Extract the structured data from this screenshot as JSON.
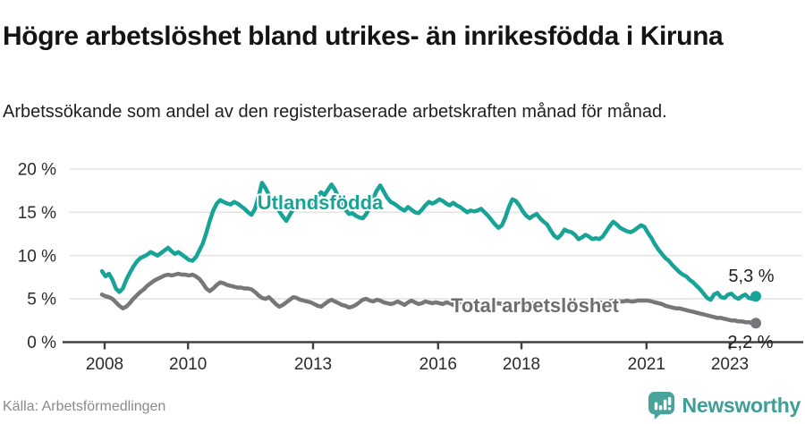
{
  "header": {
    "title": "Högre arbetslöshet bland utrikes- än inrikesfödda i Kiruna",
    "subtitle": "Arbetssökande som andel av den registerbaserade arbetskraften månad för månad."
  },
  "footer": {
    "source": "Källa: Arbetsförmedlingen",
    "brand": "Newsworthy",
    "brand_icon": "newsworthy-bar-chart-speech-bubble"
  },
  "colors": {
    "foreign_born_line": "#18a397",
    "total_line": "#76767b",
    "total_label": "#6d6d72",
    "grid": "#e3e3e3",
    "axis": "#404040",
    "tick_text": "#2b2b2b",
    "brand_teal": "#3f9e96"
  },
  "chart_data": {
    "type": "line",
    "title": "Högre arbetslöshet bland utrikes- än inrikesfödda i Kiruna",
    "subtitle": "Arbetssökande som andel av den registerbaserade arbetskraften månad för månad.",
    "unit": "%",
    "x_interval": "monthly",
    "x_start": "2008-01",
    "x_end": "2023-09",
    "xlabel": "",
    "ylabel": "",
    "ylim": [
      0,
      20
    ],
    "grid": "horizontal",
    "legend_position": "inline-labels",
    "y_tick_values": [
      20,
      15,
      10,
      5,
      0
    ],
    "y_tick_labels": [
      "20 %",
      "15 %",
      "10 %",
      "5 %",
      "0 %"
    ],
    "x_tick_years": [
      2008,
      2010,
      2013,
      2016,
      2018,
      2021,
      2023
    ],
    "x_tick_labels": [
      "2008",
      "2010",
      "2013",
      "2016",
      "2018",
      "2021",
      "2023"
    ],
    "series": [
      {
        "name": "Utlandsfödda",
        "color": "#18a397",
        "end_label": "5,3 %",
        "last_value": 5.3,
        "values": [
          8.2,
          7.6,
          7.9,
          7.2,
          6.2,
          5.8,
          6.2,
          7.2,
          8.0,
          8.7,
          9.3,
          9.7,
          9.9,
          10.1,
          10.4,
          10.2,
          10.0,
          10.3,
          10.6,
          10.9,
          10.5,
          10.2,
          10.4,
          10.1,
          9.8,
          9.5,
          9.4,
          9.8,
          10.6,
          11.4,
          12.6,
          14.0,
          15.2,
          16.0,
          16.4,
          16.2,
          16.0,
          15.9,
          16.2,
          16.0,
          15.7,
          15.4,
          15.0,
          14.7,
          15.4,
          16.8,
          18.4,
          17.8,
          17.0,
          16.3,
          15.8,
          15.1,
          14.5,
          14.0,
          14.7,
          15.4,
          15.9,
          16.2,
          15.9,
          15.6,
          15.9,
          16.3,
          16.9,
          17.3,
          17.0,
          17.6,
          18.2,
          17.6,
          16.7,
          15.9,
          15.3,
          14.8,
          14.9,
          14.6,
          14.4,
          14.3,
          14.8,
          15.6,
          16.6,
          17.5,
          18.1,
          17.4,
          16.7,
          16.2,
          16.0,
          15.7,
          15.4,
          15.2,
          15.6,
          15.3,
          15.0,
          14.9,
          15.3,
          15.8,
          16.2,
          16.0,
          16.2,
          16.5,
          16.3,
          16.0,
          15.8,
          16.1,
          15.8,
          15.6,
          15.3,
          15.0,
          15.2,
          15.1,
          15.2,
          15.4,
          15.0,
          14.6,
          14.1,
          13.6,
          13.2,
          13.5,
          14.4,
          15.6,
          16.5,
          16.3,
          15.8,
          15.1,
          14.6,
          14.3,
          14.6,
          14.8,
          14.3,
          13.9,
          13.6,
          12.9,
          12.3,
          12.0,
          12.4,
          13.0,
          12.8,
          12.7,
          12.4,
          11.9,
          12.1,
          12.4,
          12.2,
          11.9,
          12.0,
          11.9,
          12.2,
          12.8,
          13.4,
          13.9,
          13.6,
          13.2,
          13.0,
          12.8,
          12.7,
          12.9,
          13.2,
          13.5,
          13.3,
          12.6,
          12.0,
          11.3,
          10.7,
          10.2,
          9.7,
          9.4,
          8.9,
          8.5,
          8.1,
          7.8,
          7.6,
          7.2,
          6.9,
          6.5,
          6.1,
          5.6,
          5.1,
          4.9,
          5.5,
          5.7,
          5.2,
          5.1,
          5.5,
          5.6,
          5.2,
          5.0,
          5.3,
          5.5,
          5.1,
          5.0,
          5.3
        ]
      },
      {
        "name": "Total arbetslöshet",
        "color": "#76767b",
        "end_label": "2,2 %",
        "last_value": 2.2,
        "values": [
          5.5,
          5.3,
          5.2,
          5.0,
          4.6,
          4.2,
          3.9,
          4.1,
          4.5,
          5.0,
          5.4,
          5.8,
          6.1,
          6.5,
          6.8,
          7.1,
          7.3,
          7.5,
          7.7,
          7.8,
          7.7,
          7.8,
          7.9,
          7.8,
          7.8,
          7.7,
          7.8,
          7.6,
          7.3,
          6.8,
          6.2,
          5.9,
          6.2,
          6.6,
          6.9,
          6.8,
          6.6,
          6.5,
          6.4,
          6.3,
          6.3,
          6.2,
          6.2,
          6.1,
          5.8,
          5.4,
          5.1,
          5.0,
          5.2,
          4.8,
          4.4,
          4.1,
          4.3,
          4.6,
          4.9,
          5.2,
          5.1,
          4.9,
          4.8,
          4.7,
          4.6,
          4.4,
          4.2,
          4.1,
          4.4,
          4.7,
          4.9,
          4.7,
          4.5,
          4.3,
          4.2,
          4.0,
          4.1,
          4.3,
          4.6,
          4.9,
          5.0,
          4.8,
          4.7,
          4.9,
          4.8,
          4.6,
          4.5,
          4.4,
          4.5,
          4.7,
          4.5,
          4.3,
          4.6,
          4.8,
          4.6,
          4.4,
          4.5,
          4.7,
          4.6,
          4.5,
          4.6,
          4.5,
          4.4,
          4.6,
          4.5,
          4.3,
          4.4,
          4.6,
          4.5,
          4.4,
          4.5,
          4.4,
          4.4,
          4.5,
          4.6,
          4.4,
          4.3,
          4.4,
          4.5,
          4.4,
          4.3,
          4.4,
          4.5,
          4.6,
          4.5,
          4.4,
          4.3,
          4.4,
          4.5,
          4.4,
          4.3,
          4.2,
          4.3,
          4.4,
          4.3,
          4.2,
          4.3,
          4.4,
          4.5,
          4.4,
          4.3,
          4.4,
          4.5,
          4.6,
          4.5,
          4.4,
          4.5,
          4.6,
          4.5,
          4.6,
          4.7,
          4.8,
          4.8,
          4.7,
          4.7,
          4.8,
          4.7,
          4.7,
          4.8,
          4.8,
          4.8,
          4.8,
          4.7,
          4.6,
          4.5,
          4.4,
          4.2,
          4.1,
          4.0,
          3.9,
          3.9,
          3.8,
          3.7,
          3.6,
          3.5,
          3.4,
          3.3,
          3.2,
          3.1,
          3.0,
          2.9,
          2.8,
          2.8,
          2.7,
          2.6,
          2.5,
          2.5,
          2.4,
          2.4,
          2.3,
          2.3,
          2.2,
          2.2
        ]
      }
    ]
  }
}
